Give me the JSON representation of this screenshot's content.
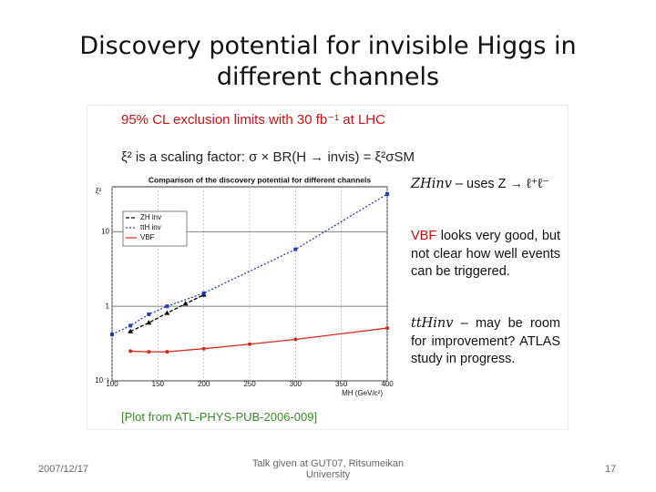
{
  "slide": {
    "title": "Discovery potential for invisible Higgs in different channels",
    "heading": "95% CL exclusion limits with 30 fb⁻¹ at LHC",
    "subheading": "ξ² is a scaling factor: σ × BR(H → invis) = ξ²σSM",
    "notes": [
      {
        "lead": "ZHinv",
        "text": " – uses Z → ℓ⁺ℓ⁻"
      },
      {
        "lead": "VBF",
        "text": " looks very good, but not clear how well events can be triggered."
      },
      {
        "lead": "ttHinv",
        "text": " – may be room for improvement? ATLAS study in progress."
      }
    ],
    "caption": "[Plot from ATL-PHYS-PUB-2006-009]",
    "footer": {
      "date": "2007/12/17",
      "center": "Talk given at GUT07, Ritsumeikan University",
      "page": "17"
    }
  },
  "chart_data": {
    "type": "line",
    "title": "Comparison of the discovery potential for different channels",
    "x_label": "MH (GeV/c²)",
    "y_label": "ξ²",
    "log_y": true,
    "grid": true,
    "legend": "upper left",
    "xlim": [
      100,
      400
    ],
    "xticks": [
      100,
      150,
      200,
      250,
      300,
      350,
      400
    ],
    "ylim": [
      0.1,
      40
    ],
    "yticks": [
      {
        "value": 0.1,
        "label": "10⁻¹"
      },
      1,
      10
    ],
    "series": [
      {
        "name": "ZH inv",
        "color": "#000000",
        "marker": "triangle",
        "x": [
          120,
          140,
          160,
          180,
          200
        ],
        "values": [
          0.46,
          0.6,
          0.81,
          1.08,
          1.42
        ]
      },
      {
        "name": "ttH inv",
        "color": "#1f3fbf",
        "marker": "square",
        "x": [
          100,
          120,
          140,
          160,
          200,
          300,
          400
        ],
        "values": [
          0.42,
          0.55,
          0.78,
          1.0,
          1.5,
          5.8,
          32
        ]
      },
      {
        "name": "VBF",
        "color": "#d42a1a",
        "marker": "circle",
        "x": [
          120,
          140,
          160,
          200,
          250,
          300,
          400
        ],
        "values": [
          0.25,
          0.245,
          0.245,
          0.27,
          0.31,
          0.36,
          0.51
        ]
      }
    ]
  }
}
